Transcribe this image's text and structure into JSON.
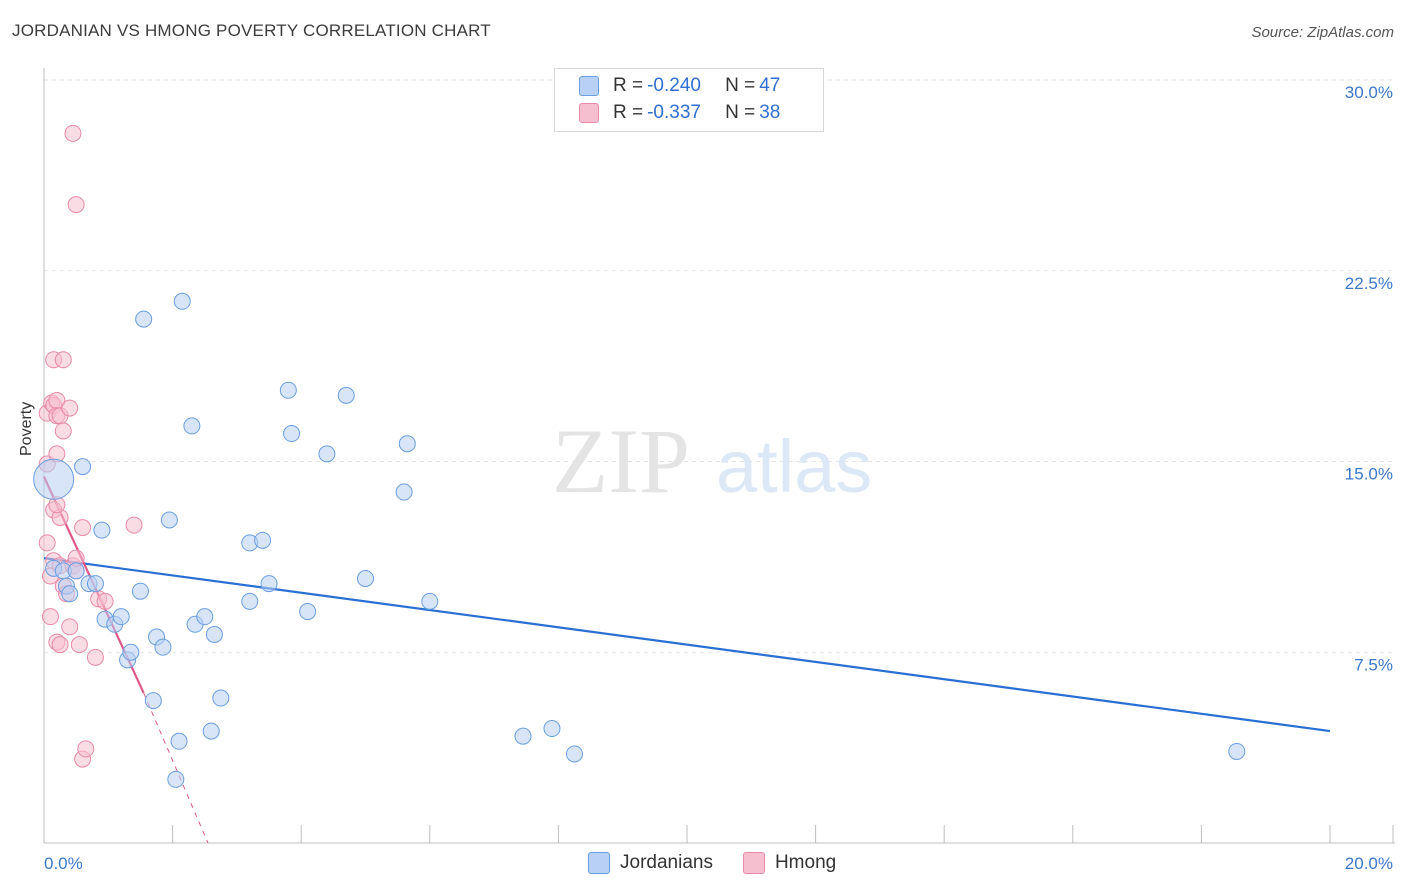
{
  "title": "JORDANIAN VS HMONG POVERTY CORRELATION CHART",
  "source": "Source: ZipAtlas.com",
  "colors": {
    "jordanian_fill": "#b8d0f3",
    "jordanian_stroke": "#6a9ee0",
    "jordanian_line": "#2a6fd4",
    "hmong_fill": "#f6bfd0",
    "hmong_stroke": "#e88aa8",
    "hmong_line": "#e0588a",
    "tick_text": "#3b78c9"
  },
  "legend": {
    "jordanian": {
      "r_label": "R = ",
      "r_value": "-0.240",
      "n_label": "N = ",
      "n_value": "47"
    },
    "hmong": {
      "r_label": "R = ",
      "r_value": "-0.337",
      "n_label": "N = ",
      "n_value": "38"
    }
  },
  "bottom_legend": {
    "jordanians": "Jordanians",
    "hmong": "Hmong"
  },
  "watermark": {
    "zip": "ZIP",
    "atlas": "atlas"
  },
  "chart_data": {
    "type": "scatter",
    "title": "JORDANIAN VS HMONG POVERTY CORRELATION CHART",
    "xlabel": "",
    "ylabel": "Poverty",
    "xlim": [
      0,
      20
    ],
    "ylim": [
      0,
      30
    ],
    "x_tick_labels": [
      "0.0%",
      "20.0%"
    ],
    "y_ticks": [
      7.5,
      15.0,
      22.5,
      30.0
    ],
    "y_tick_labels": [
      "7.5%",
      "15.0%",
      "22.5%",
      "30.0%"
    ],
    "grid": true,
    "series": [
      {
        "name": "Jordanians",
        "points": [
          [
            0.15,
            14.3
          ],
          [
            0.15,
            10.8
          ],
          [
            0.3,
            10.7
          ],
          [
            0.35,
            10.1
          ],
          [
            0.4,
            9.8
          ],
          [
            0.5,
            10.7
          ],
          [
            0.6,
            14.8
          ],
          [
            0.7,
            10.2
          ],
          [
            0.8,
            10.2
          ],
          [
            0.9,
            12.3
          ],
          [
            0.95,
            8.8
          ],
          [
            1.1,
            8.6
          ],
          [
            1.2,
            8.9
          ],
          [
            1.3,
            7.2
          ],
          [
            1.35,
            7.5
          ],
          [
            1.5,
            9.9
          ],
          [
            1.55,
            20.6
          ],
          [
            1.7,
            5.6
          ],
          [
            1.75,
            8.1
          ],
          [
            1.85,
            7.7
          ],
          [
            1.95,
            12.7
          ],
          [
            2.05,
            2.5
          ],
          [
            2.1,
            4.0
          ],
          [
            2.15,
            21.3
          ],
          [
            2.3,
            16.4
          ],
          [
            2.35,
            8.6
          ],
          [
            2.5,
            8.9
          ],
          [
            2.6,
            4.4
          ],
          [
            2.65,
            8.2
          ],
          [
            2.75,
            5.7
          ],
          [
            3.2,
            11.8
          ],
          [
            3.2,
            9.5
          ],
          [
            3.4,
            11.9
          ],
          [
            3.5,
            10.2
          ],
          [
            3.8,
            17.8
          ],
          [
            3.85,
            16.1
          ],
          [
            4.1,
            9.1
          ],
          [
            4.4,
            15.3
          ],
          [
            4.7,
            17.6
          ],
          [
            5.0,
            10.4
          ],
          [
            5.6,
            13.8
          ],
          [
            5.65,
            15.7
          ],
          [
            6.0,
            9.5
          ],
          [
            7.45,
            4.2
          ],
          [
            7.9,
            4.5
          ],
          [
            8.25,
            3.5
          ],
          [
            18.55,
            3.6
          ]
        ]
      },
      {
        "name": "Hmong",
        "points": [
          [
            0.05,
            16.9
          ],
          [
            0.05,
            14.9
          ],
          [
            0.05,
            11.8
          ],
          [
            0.1,
            10.5
          ],
          [
            0.1,
            8.9
          ],
          [
            0.12,
            17.3
          ],
          [
            0.15,
            19.0
          ],
          [
            0.15,
            17.2
          ],
          [
            0.15,
            13.1
          ],
          [
            0.15,
            11.1
          ],
          [
            0.2,
            17.4
          ],
          [
            0.2,
            16.8
          ],
          [
            0.2,
            15.3
          ],
          [
            0.2,
            7.9
          ],
          [
            0.25,
            16.8
          ],
          [
            0.25,
            12.8
          ],
          [
            0.25,
            10.9
          ],
          [
            0.25,
            7.8
          ],
          [
            0.3,
            19.0
          ],
          [
            0.3,
            16.2
          ],
          [
            0.3,
            10.1
          ],
          [
            0.35,
            9.8
          ],
          [
            0.4,
            17.1
          ],
          [
            0.4,
            8.5
          ],
          [
            0.45,
            10.9
          ],
          [
            0.45,
            27.9
          ],
          [
            0.5,
            25.1
          ],
          [
            0.5,
            10.7
          ],
          [
            0.55,
            7.8
          ],
          [
            0.5,
            11.2
          ],
          [
            0.6,
            12.4
          ],
          [
            0.6,
            3.3
          ],
          [
            0.65,
            3.7
          ],
          [
            0.8,
            7.3
          ],
          [
            0.85,
            9.6
          ],
          [
            0.95,
            9.5
          ],
          [
            1.4,
            12.5
          ],
          [
            0.2,
            13.3
          ]
        ]
      }
    ],
    "trendlines": [
      {
        "name": "Jordanians",
        "x": [
          0.0,
          20.0
        ],
        "y": [
          11.2,
          4.4
        ],
        "style": "solid"
      },
      {
        "name": "Hmong",
        "x": [
          0.0,
          1.55
        ],
        "y": [
          14.4,
          5.9
        ],
        "style": "solid"
      },
      {
        "name": "Hmong extension",
        "x": [
          1.55,
          2.55
        ],
        "y": [
          5.9,
          0.0
        ],
        "style": "dashed"
      }
    ]
  }
}
